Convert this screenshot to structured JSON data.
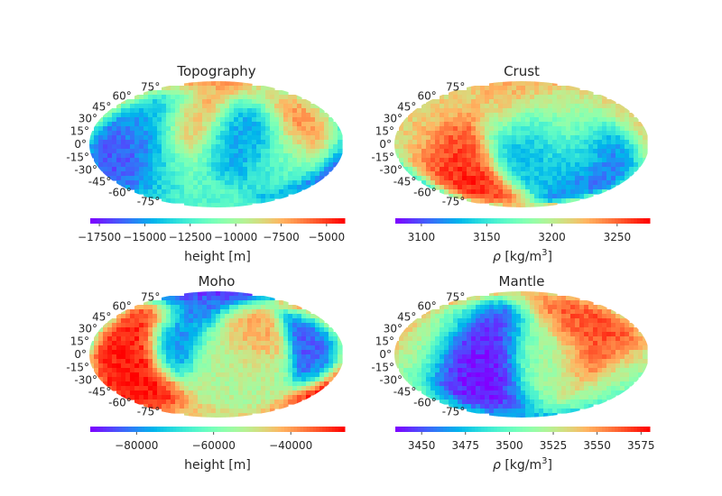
{
  "chart_data": [
    {
      "type": "heatmap",
      "projection": "mollweide",
      "title": "Topography",
      "colormap": "rainbow",
      "lat_labels": [
        "75°",
        "60°",
        "45°",
        "30°",
        "15°",
        "0°",
        "-15°",
        "-30°",
        "-45°",
        "-60°",
        "-75°"
      ],
      "colorbar": {
        "range": [
          -18000,
          -4000
        ],
        "ticks": [
          -17500,
          -15000,
          -12500,
          -10000,
          -7500,
          -5000
        ],
        "tick_labels": [
          "−17500",
          "−15000",
          "−12500",
          "−10000",
          "−7500",
          "−5000"
        ],
        "label": "height [m]",
        "label_base": "height [m]",
        "label_sup": ""
      },
      "features": [
        {
          "lon": -140,
          "lat": 5,
          "value": 0.1,
          "spread": 40
        },
        {
          "lon": -120,
          "lat": -15,
          "value": 0.08,
          "spread": 30
        },
        {
          "lon": -110,
          "lat": 30,
          "value": 0.35,
          "spread": 25
        },
        {
          "lon": -40,
          "lat": 30,
          "value": 0.8,
          "spread": 25
        },
        {
          "lon": 0,
          "lat": 70,
          "value": 1.0,
          "spread": 22
        },
        {
          "lon": 60,
          "lat": 35,
          "value": 0.15,
          "spread": 25
        },
        {
          "lon": 30,
          "lat": 0,
          "value": 0.25,
          "spread": 30
        },
        {
          "lon": 120,
          "lat": 30,
          "value": 0.92,
          "spread": 30
        },
        {
          "lon": 150,
          "lat": 40,
          "value": 0.85,
          "spread": 25
        },
        {
          "lon": -70,
          "lat": -45,
          "value": 0.55,
          "spread": 30
        },
        {
          "lon": 100,
          "lat": -20,
          "value": 0.4,
          "spread": 25
        }
      ]
    },
    {
      "type": "heatmap",
      "projection": "mollweide",
      "title": "Crust",
      "colormap": "rainbow",
      "lat_labels": [
        "75°",
        "60°",
        "45°",
        "30°",
        "15°",
        "0°",
        "-15°",
        "-30°",
        "-45°",
        "-60°",
        "-75°"
      ],
      "colorbar": {
        "range": [
          3080,
          3275
        ],
        "ticks": [
          3100,
          3150,
          3200,
          3250
        ],
        "tick_labels": [
          "3100",
          "3150",
          "3200",
          "3250"
        ],
        "label": "ρ [kg/m³]",
        "label_base": "ρ [kg/m",
        "label_sup": "3",
        "label_close": "]"
      },
      "features": [
        {
          "lon": -100,
          "lat": -25,
          "value": 0.92,
          "spread": 30
        },
        {
          "lon": -90,
          "lat": -50,
          "value": 1.0,
          "spread": 20
        },
        {
          "lon": 20,
          "lat": 10,
          "value": 0.25,
          "spread": 35
        },
        {
          "lon": 90,
          "lat": -10,
          "value": 0.3,
          "spread": 30
        },
        {
          "lon": 135,
          "lat": -35,
          "value": 0.1,
          "spread": 25
        },
        {
          "lon": -20,
          "lat": 60,
          "value": 0.85,
          "spread": 25
        },
        {
          "lon": 60,
          "lat": 45,
          "value": 0.75,
          "spread": 30
        },
        {
          "lon": -160,
          "lat": 20,
          "value": 0.7,
          "spread": 30
        }
      ]
    },
    {
      "type": "heatmap",
      "projection": "mollweide",
      "title": "Moho",
      "colormap": "rainbow",
      "lat_labels": [
        "75°",
        "60°",
        "45°",
        "30°",
        "15°",
        "0°",
        "-15°",
        "-30°",
        "-45°",
        "-60°",
        "-75°"
      ],
      "colorbar": {
        "range": [
          -92000,
          -26000
        ],
        "ticks": [
          -80000,
          -60000,
          -40000
        ],
        "tick_labels": [
          "−80000",
          "−60000",
          "−40000"
        ],
        "label": "height [m]",
        "label_base": "height [m]",
        "label_sup": ""
      },
      "features": [
        {
          "lon": -140,
          "lat": 0,
          "value": 0.95,
          "spread": 30
        },
        {
          "lon": -120,
          "lat": -20,
          "value": 1.0,
          "spread": 25
        },
        {
          "lon": -60,
          "lat": 10,
          "value": 0.15,
          "spread": 20
        },
        {
          "lon": -20,
          "lat": 80,
          "value": 0.05,
          "spread": 25
        },
        {
          "lon": 50,
          "lat": 25,
          "value": 0.8,
          "spread": 20
        },
        {
          "lon": 150,
          "lat": 10,
          "value": 0.1,
          "spread": 20
        },
        {
          "lon": 20,
          "lat": -20,
          "value": 0.6,
          "spread": 35
        }
      ]
    },
    {
      "type": "heatmap",
      "projection": "mollweide",
      "title": "Mantle",
      "colormap": "rainbow",
      "lat_labels": [
        "75°",
        "60°",
        "45°",
        "30°",
        "15°",
        "0°",
        "-15°",
        "-30°",
        "-45°",
        "-60°",
        "-75°"
      ],
      "colorbar": {
        "range": [
          3435,
          3580
        ],
        "ticks": [
          3450,
          3475,
          3500,
          3525,
          3550,
          3575
        ],
        "tick_labels": [
          "3450",
          "3475",
          "3500",
          "3525",
          "3550",
          "3575"
        ],
        "label": "ρ [kg/m³]",
        "label_base": "ρ [kg/m",
        "label_sup": "3",
        "label_close": "]"
      },
      "features": [
        {
          "lon": -80,
          "lat": 0,
          "value": 0.05,
          "spread": 40
        },
        {
          "lon": -60,
          "lat": -30,
          "value": 0.0,
          "spread": 25
        },
        {
          "lon": 120,
          "lat": 15,
          "value": 0.95,
          "spread": 35
        },
        {
          "lon": 100,
          "lat": 40,
          "value": 0.88,
          "spread": 25
        },
        {
          "lon": -140,
          "lat": 20,
          "value": 0.7,
          "spread": 25
        },
        {
          "lon": 40,
          "lat": -10,
          "value": 0.55,
          "spread": 30
        },
        {
          "lon": 150,
          "lat": -30,
          "value": 0.45,
          "spread": 25
        }
      ]
    }
  ]
}
